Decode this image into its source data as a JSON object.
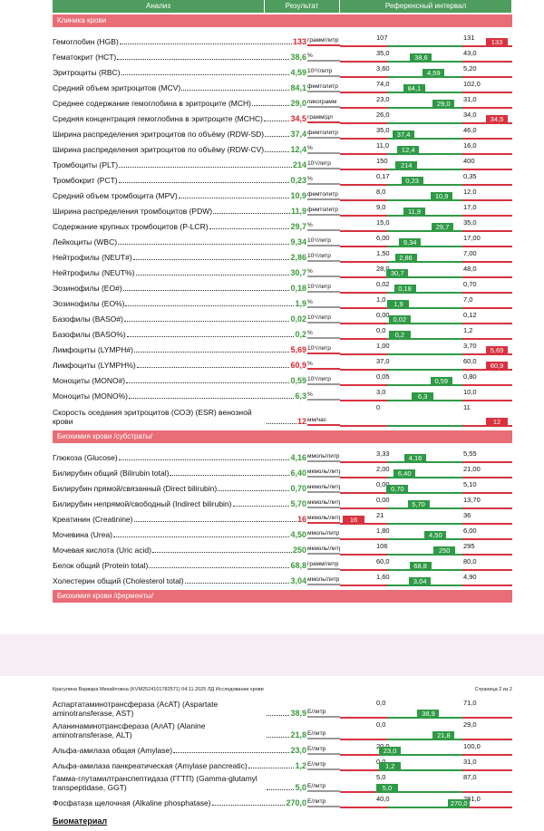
{
  "header": {
    "columns": [
      "Анализ",
      "Результат",
      "Референсный интервал"
    ]
  },
  "sections": [
    {
      "title": "Клиника крови",
      "rows": [
        {
          "name": "Гемоглобин (HGB)",
          "value": "133",
          "unit": "грамм/литр",
          "low": "107",
          "high": "131"
        },
        {
          "name": "Гематокрит (HCT)",
          "value": "38,6",
          "unit": "%",
          "low": "35,0",
          "high": "43,0"
        },
        {
          "name": "Эритроциты (RBC)",
          "value": "4,59",
          "unit": "10¹²/литр",
          "low": "3,60",
          "high": "5,20"
        },
        {
          "name": "Средний объем эритроцитов (MCV)",
          "value": "84,1",
          "unit": "фемтолитр",
          "low": "74,0",
          "high": "102,0"
        },
        {
          "name": "Среднее содержание гемоглобина в эритроците (MCH)",
          "value": "29,0",
          "unit": "пикограмм",
          "low": "23,0",
          "high": "31,0"
        },
        {
          "name": "Средняя концентрация гемоглобина в эритроците (MCHC)",
          "value": "34,5",
          "unit": "грамм/дл",
          "low": "26,0",
          "high": "34,0"
        },
        {
          "name": "Ширина распределения эритроцитов по объёму (RDW-SD)",
          "value": "37,4",
          "unit": "фемтолитр",
          "low": "35,0",
          "high": "46,0"
        },
        {
          "name": "Ширина распределения эритроцитов по объёму (RDW-CV)",
          "value": "12,4",
          "unit": "%",
          "low": "11,0",
          "high": "16,0"
        },
        {
          "name": "Тромбоциты (PLT)",
          "value": "214",
          "unit": "10⁹/литр",
          "low": "150",
          "high": "400"
        },
        {
          "name": "Тромбокрит (PCT)",
          "value": "0,23",
          "unit": "%",
          "low": "0,17",
          "high": "0,35"
        },
        {
          "name": "Средний объем тромбоцита (MPV)",
          "value": "10,9",
          "unit": "фемтолитр",
          "low": "8,0",
          "high": "12,0"
        },
        {
          "name": "Ширина распределения тромбоцитов (PDW)",
          "value": "11,9",
          "unit": "фемтолитр",
          "low": "9,0",
          "high": "17,0"
        },
        {
          "name": "Содержание крупных тромбоцитов (P-LCR)",
          "value": "29,7",
          "unit": "%",
          "low": "15,0",
          "high": "35,0"
        },
        {
          "name": "Лейкоциты (WBC)",
          "value": "9,34",
          "unit": "10⁹/литр",
          "low": "6,00",
          "high": "17,00"
        },
        {
          "name": "Нейтрофилы (NEUT#)",
          "value": "2,86",
          "unit": "10⁹/литр",
          "low": "1,50",
          "high": "7,00"
        },
        {
          "name": "Нейтрофилы (NEUT%)",
          "value": "30,7",
          "unit": "%",
          "low": "28,0",
          "high": "48,0"
        },
        {
          "name": "Эозинофилы (EO#)",
          "value": "0,18",
          "unit": "10⁹/литр",
          "low": "0,02",
          "high": "0,70"
        },
        {
          "name": "Эозинофилы (EO%)",
          "value": "1,9",
          "unit": "%",
          "low": "1,0",
          "high": "7,0"
        },
        {
          "name": "Базофилы (BASO#)",
          "value": "0,02",
          "unit": "10⁹/литр",
          "low": "0,00",
          "high": "0,12"
        },
        {
          "name": "Базофилы (BASO%)",
          "value": "0,2",
          "unit": "%",
          "low": "0,0",
          "high": "1,2"
        },
        {
          "name": "Лимфоциты (LYMPH#)",
          "value": "5,69",
          "unit": "10⁹/литр",
          "low": "1,00",
          "high": "3,70"
        },
        {
          "name": "Лимфоциты (LYMPH%)",
          "value": "60,9",
          "unit": "%",
          "low": "37,0",
          "high": "60,0"
        },
        {
          "name": "Моноциты (MONO#)",
          "value": "0,59",
          "unit": "10⁹/литр",
          "low": "0,05",
          "high": "0,80"
        },
        {
          "name": "Моноциты (MONO%)",
          "value": "6,3",
          "unit": "%",
          "low": "3,0",
          "high": "10,0"
        },
        {
          "name": "Скорость оседания эритроцитов (СОЭ) (ESR) венозной крови",
          "value": "12",
          "unit": "мм/час",
          "low": "0",
          "high": "11"
        }
      ]
    },
    {
      "title": "Биохимия крови /субстраты/",
      "rows": [
        {
          "name": "Глюкоза (Glucose)",
          "value": "4,16",
          "unit": "ммоль/литр",
          "low": "3,33",
          "high": "5,55"
        },
        {
          "name": "Билирубин общий (Bilirubin total)",
          "value": "6,40",
          "unit": "мкмоль/литр",
          "low": "2,00",
          "high": "21,00"
        },
        {
          "name": "Билирубин прямой/связанный (Direct bilirubin)",
          "value": "0,70",
          "unit": "мкмоль/литр",
          "low": "0,00",
          "high": "5,10"
        },
        {
          "name": "Билирубин непрямой/свободный (Indirect bilirubin)",
          "value": "5,70",
          "unit": "мкмоль/литр",
          "low": "0,00",
          "high": "13,70"
        },
        {
          "name": "Креатинин (Creatinine)",
          "value": "16",
          "unit": "мкмоль/литр",
          "low": "21",
          "high": "36"
        },
        {
          "name": "Мочевина (Urea)",
          "value": "4,50",
          "unit": "ммоль/литр",
          "low": "1,80",
          "high": "6,00"
        },
        {
          "name": "Мочевая кислота (Uric acid)",
          "value": "250",
          "unit": "мкмоль/литр",
          "low": "106",
          "high": "295"
        },
        {
          "name": "Белок общий (Protein total)",
          "value": "68,8",
          "unit": "грамм/литр",
          "low": "60,0",
          "high": "80,0"
        },
        {
          "name": "Холестерин общий (Cholesterol total)",
          "value": "3,04",
          "unit": "ммоль/литр",
          "low": "1,60",
          "high": "4,90"
        }
      ]
    },
    {
      "title": "Биохимия крови /ферменты/"
    }
  ],
  "page2": {
    "patient": "Красулина Варвара Михайловна (KVM2524101782571) 04.11.2025 ЛД Исследование крови",
    "page": "Страница 2 из 2",
    "rows": [
      {
        "name": "Аспартатаминотрансфераза (АсАТ) (Aspartate aminotransferase, AST)",
        "value": "38,9",
        "unit": "Е/литр",
        "low": "0,0",
        "high": "71,0"
      },
      {
        "name": "Аланинаминотрансфераза (АлАТ) (Alanine aminotransferase, ALT)",
        "value": "21,8",
        "unit": "Е/литр",
        "low": "0,0",
        "high": "29,0"
      },
      {
        "name": "Альфа-амилаза общая (Amylase)",
        "value": "23,0",
        "unit": "Е/литр",
        "low": "20,0",
        "high": "100,0"
      },
      {
        "name": "Альфа-амилаза панкреатическая (Amylase pancreatic)",
        "value": "1,2",
        "unit": "Е/литр",
        "low": "0,0",
        "high": "31,0"
      },
      {
        "name": "Гамма-глутамилтранспептидаза (ГГТП) (Gamma-glutamyl transpeptidase, GGT)",
        "value": "5,0",
        "unit": "Е/литр",
        "low": "5,0",
        "high": "87,0"
      },
      {
        "name": "Фосфатаза щелочная (Alkaline phosphatase)",
        "value": "270,0",
        "unit": "Е/литр",
        "low": "40,0",
        "high": "281,0"
      }
    ],
    "footer": "Биоматериал"
  }
}
